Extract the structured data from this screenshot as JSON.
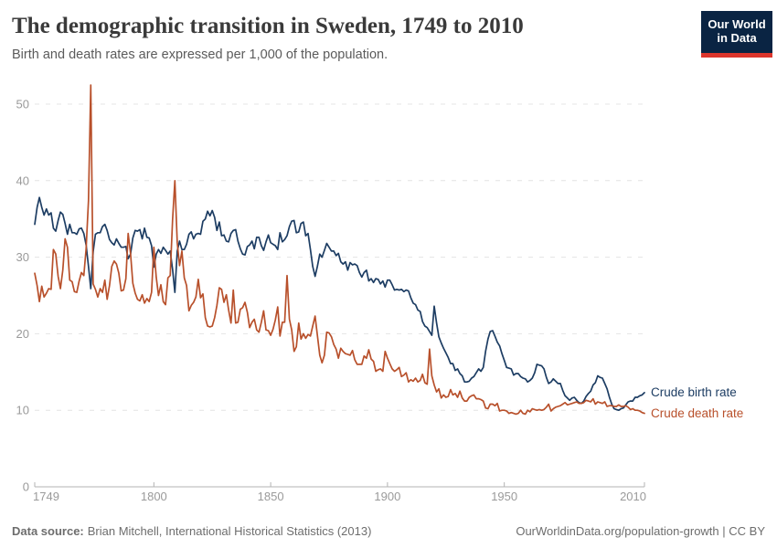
{
  "header": {
    "title": "The demographic transition in Sweden, 1749 to 2010",
    "subtitle": "Birth and death rates are expressed per 1,000 of the population.",
    "logo": {
      "line1": "Our World",
      "line2": "in Data"
    }
  },
  "colors": {
    "birth": "#1d3d63",
    "death": "#b8502b",
    "axis": "#b3b3b3",
    "gridline": "#e4e4e4",
    "tick_label": "#9a9a9a",
    "logo_bg": "#0a2443",
    "logo_accent": "#dc352c"
  },
  "chart_data": {
    "type": "line",
    "title": "The demographic transition in Sweden, 1749 to 2010",
    "xlabel": "",
    "ylabel": "",
    "x_start_year": 1749,
    "x_end_year": 2010,
    "x_ticks": [
      1749,
      1800,
      1850,
      1900,
      1950,
      2010
    ],
    "y_ticks": [
      0,
      10,
      20,
      30,
      40,
      50
    ],
    "ylim": [
      0,
      53
    ],
    "grid": "horizontal-dashed",
    "legend_position": "end-of-line-labels",
    "series": [
      {
        "name": "Crude birth rate",
        "color": "#1d3d63",
        "values": [
          34.3,
          36.5,
          37.8,
          36.5,
          35.5,
          36.3,
          35.5,
          35.8,
          33.8,
          33.4,
          34.8,
          35.9,
          35.6,
          34.4,
          33.0,
          34.3,
          33.2,
          33.2,
          33.0,
          33.7,
          33.8,
          33.1,
          31.6,
          28.8,
          25.9,
          30.7,
          33.0,
          33.2,
          33.2,
          34.0,
          34.3,
          33.5,
          32.3,
          31.9,
          31.6,
          32.4,
          31.8,
          31.3,
          31.3,
          31.4,
          29.8,
          30.4,
          32.5,
          33.5,
          33.4,
          33.6,
          32.4,
          33.8,
          32.6,
          32.5,
          31.5,
          28.7,
          30.4,
          31.0,
          30.5,
          31.3,
          30.9,
          30.4,
          30.8,
          28.4,
          25.4,
          30.8,
          32.1,
          31.0,
          31.0,
          31.7,
          33.0,
          33.3,
          32.4,
          33.0,
          33.1,
          33.0,
          34.7,
          35.0,
          36.0,
          35.4,
          36.1,
          35.2,
          33.5,
          34.6,
          32.8,
          32.9,
          32.1,
          32.0,
          33.1,
          33.5,
          33.6,
          32.1,
          31.1,
          30.4,
          30.3,
          31.4,
          31.6,
          32.1,
          31.1,
          32.6,
          32.6,
          31.5,
          30.9,
          32.0,
          32.9,
          31.9,
          31.7,
          31.5,
          31.0,
          33.2,
          32.0,
          32.3,
          32.8,
          34.0,
          34.7,
          34.8,
          33.2,
          33.3,
          34.4,
          34.6,
          32.8,
          33.1,
          31.0,
          28.8,
          27.5,
          28.8,
          30.4,
          30.0,
          30.9,
          31.8,
          31.3,
          30.8,
          30.8,
          30.2,
          30.5,
          29.4,
          29.1,
          29.4,
          28.3,
          29.3,
          29.0,
          29.1,
          28.9,
          28.0,
          27.4,
          28.0,
          28.3,
          26.9,
          27.2,
          26.7,
          27.2,
          27.1,
          26.5,
          26.9,
          26.1,
          27.0,
          27.0,
          26.4,
          25.7,
          25.8,
          25.7,
          25.8,
          25.5,
          25.7,
          25.6,
          24.7,
          24.0,
          23.8,
          23.1,
          22.9,
          21.6,
          21.0,
          20.8,
          20.3,
          19.8,
          23.6,
          21.4,
          19.6,
          18.8,
          18.1,
          17.5,
          16.9,
          16.1,
          16.1,
          15.2,
          15.4,
          14.8,
          14.5,
          13.7,
          13.7,
          13.8,
          14.2,
          14.4,
          14.9,
          15.4,
          15.1,
          15.6,
          17.7,
          19.3,
          20.3,
          20.4,
          19.7,
          18.9,
          18.4,
          17.4,
          16.5,
          15.6,
          15.5,
          15.4,
          14.6,
          14.8,
          14.8,
          14.4,
          14.2,
          14.1,
          13.7,
          13.9,
          14.2,
          14.9,
          16.0,
          15.9,
          15.8,
          15.4,
          14.3,
          13.5,
          13.7,
          14.1,
          13.8,
          13.5,
          13.5,
          12.6,
          11.9,
          11.6,
          11.3,
          11.6,
          11.7,
          11.3,
          11.0,
          10.9,
          11.2,
          11.8,
          12.2,
          12.5,
          13.3,
          13.6,
          14.5,
          14.3,
          14.2,
          13.5,
          12.8,
          11.7,
          10.8,
          10.2,
          10.1,
          10.0,
          10.2,
          10.3,
          10.7,
          11.1,
          11.2,
          11.2,
          11.7,
          11.7,
          11.9,
          12.0,
          12.3
        ]
      },
      {
        "name": "Crude death rate",
        "color": "#b8502b",
        "values": [
          27.9,
          26.3,
          24.2,
          26.2,
          24.8,
          25.3,
          25.9,
          25.8,
          31.0,
          30.4,
          27.5,
          25.9,
          28.3,
          32.4,
          31.3,
          27.0,
          26.8,
          25.5,
          25.4,
          26.9,
          28.0,
          27.6,
          31.1,
          37.4,
          52.5,
          26.5,
          25.8,
          24.8,
          25.9,
          25.4,
          27.0,
          24.5,
          26.3,
          28.8,
          29.5,
          29.1,
          27.9,
          25.6,
          25.7,
          27.2,
          33.1,
          30.5,
          26.6,
          25.3,
          24.5,
          24.3,
          25.1,
          24.0,
          24.6,
          24.2,
          25.4,
          31.3,
          27.4,
          25.0,
          26.4,
          24.2,
          23.8,
          27.3,
          27.6,
          34.9,
          40.0,
          31.9,
          28.9,
          30.8,
          27.3,
          26.3,
          23.0,
          23.7,
          24.1,
          24.8,
          27.1,
          24.7,
          25.2,
          22.1,
          21.0,
          20.9,
          21.0,
          22.1,
          23.7,
          26.0,
          25.8,
          24.1,
          25.1,
          23.1,
          21.4,
          25.7,
          21.4,
          21.5,
          23.2,
          23.4,
          24.1,
          22.8,
          20.8,
          21.5,
          21.9,
          20.5,
          20.2,
          21.5,
          23.0,
          20.5,
          20.4,
          19.8,
          20.6,
          21.8,
          23.5,
          19.7,
          21.5,
          21.5,
          27.6,
          21.9,
          20.5,
          17.7,
          18.3,
          21.4,
          19.3,
          20.0,
          19.4,
          19.9,
          19.7,
          21.0,
          22.3,
          19.8,
          17.2,
          16.2,
          17.2,
          20.2,
          20.1,
          19.6,
          18.6,
          18.0,
          16.8,
          18.1,
          17.7,
          17.4,
          17.3,
          17.2,
          17.8,
          16.6,
          16.0,
          16.0,
          16.0,
          17.1,
          16.8,
          17.9,
          16.7,
          16.4,
          15.1,
          15.3,
          15.4,
          15.1,
          17.7,
          16.8,
          16.1,
          15.4,
          15.1,
          15.3,
          15.6,
          14.4,
          14.6,
          14.9,
          13.7,
          14.0,
          13.8,
          14.2,
          13.7,
          13.9,
          14.7,
          13.6,
          13.4,
          18.0,
          14.5,
          13.3,
          12.4,
          12.8,
          11.6,
          12.0,
          11.7,
          11.8,
          12.7,
          12.0,
          12.2,
          11.7,
          12.5,
          11.6,
          11.2,
          11.2,
          11.7,
          11.9,
          12.0,
          11.5,
          11.5,
          11.4,
          11.2,
          10.3,
          10.2,
          10.8,
          10.8,
          10.6,
          10.9,
          9.9,
          10.0,
          10.0,
          9.9,
          9.6,
          9.7,
          9.6,
          9.5,
          9.6,
          10.0,
          9.6,
          9.5,
          10.0,
          9.8,
          10.2,
          10.1,
          10.0,
          10.1,
          10.0,
          10.1,
          10.4,
          10.8,
          9.9,
          10.2,
          10.4,
          10.5,
          10.6,
          10.8,
          11.0,
          10.7,
          10.8,
          10.9,
          11.0,
          11.1,
          10.9,
          10.9,
          11.0,
          11.3,
          11.2,
          11.1,
          11.5,
          10.8,
          11.1,
          11.0,
          10.9,
          11.1,
          10.5,
          10.6,
          10.6,
          10.5,
          10.5,
          10.7,
          10.5,
          10.5,
          10.6,
          10.4,
          10.1,
          10.2,
          10.0,
          10.0,
          9.9,
          9.7,
          9.6
        ]
      }
    ]
  },
  "footer": {
    "source_label": "Data source:",
    "source_text": "Brian Mitchell, International Historical Statistics (2013)",
    "url": "OurWorldinData.org/population-growth",
    "divider": " | ",
    "license": "CC BY"
  }
}
